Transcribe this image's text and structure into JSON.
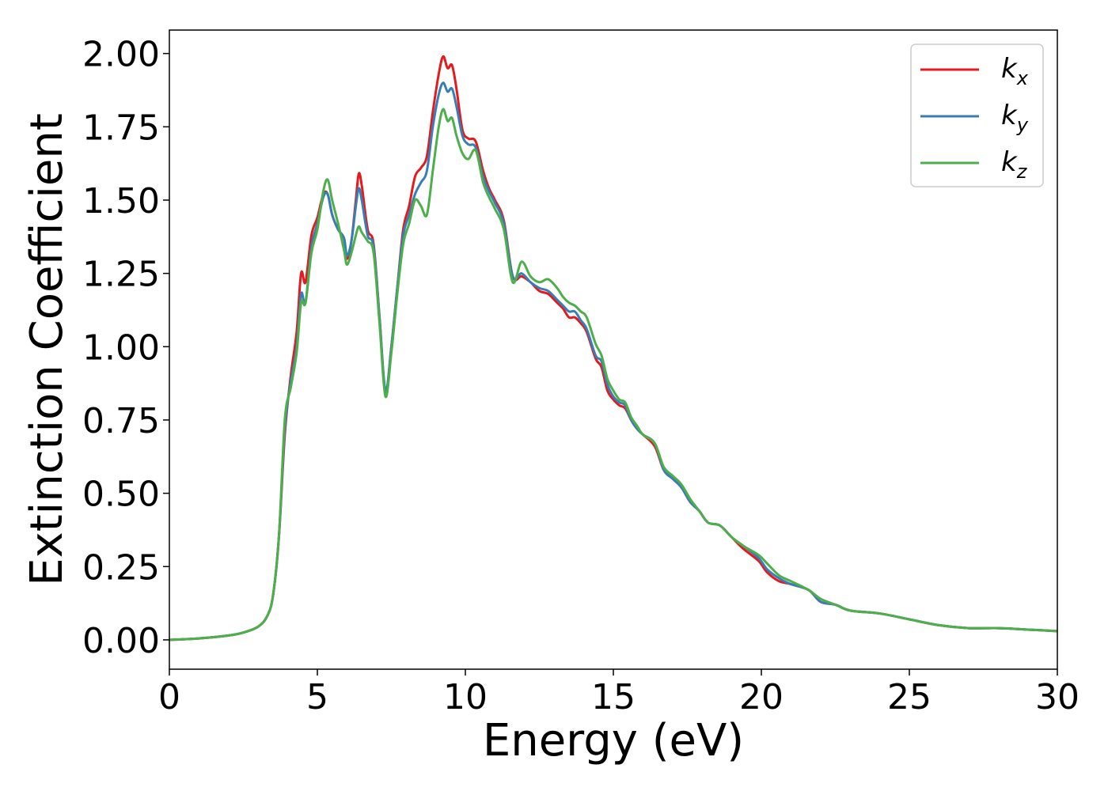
{
  "chart_data": {
    "type": "line",
    "xlabel": "Energy (eV)",
    "ylabel": "Extinction Coefficient",
    "xlim": [
      0,
      30
    ],
    "ylim": [
      -0.1,
      2.08
    ],
    "xticks": [
      "0",
      "5",
      "10",
      "15",
      "20",
      "25",
      "30"
    ],
    "yticks": [
      "0.00",
      "0.25",
      "0.50",
      "0.75",
      "1.00",
      "1.25",
      "1.50",
      "1.75",
      "2.00"
    ],
    "grid": false,
    "legend_position": "top-right",
    "series": [
      {
        "name": "k",
        "subscript": "x",
        "color": "#e41a1c",
        "points": [
          [
            0,
            0
          ],
          [
            1,
            0.005
          ],
          [
            2,
            0.015
          ],
          [
            2.5,
            0.025
          ],
          [
            3,
            0.045
          ],
          [
            3.3,
            0.08
          ],
          [
            3.5,
            0.15
          ],
          [
            3.7,
            0.35
          ],
          [
            3.9,
            0.7
          ],
          [
            4.1,
            0.9
          ],
          [
            4.3,
            1.05
          ],
          [
            4.45,
            1.25
          ],
          [
            4.6,
            1.22
          ],
          [
            4.8,
            1.38
          ],
          [
            5.0,
            1.44
          ],
          [
            5.2,
            1.52
          ],
          [
            5.35,
            1.52
          ],
          [
            5.5,
            1.45
          ],
          [
            5.7,
            1.4
          ],
          [
            5.9,
            1.37
          ],
          [
            6.0,
            1.3
          ],
          [
            6.15,
            1.36
          ],
          [
            6.3,
            1.5
          ],
          [
            6.4,
            1.59
          ],
          [
            6.5,
            1.55
          ],
          [
            6.7,
            1.4
          ],
          [
            6.9,
            1.35
          ],
          [
            7.1,
            1.1
          ],
          [
            7.3,
            0.84
          ],
          [
            7.5,
            1.0
          ],
          [
            7.7,
            1.2
          ],
          [
            7.9,
            1.4
          ],
          [
            8.1,
            1.48
          ],
          [
            8.3,
            1.58
          ],
          [
            8.5,
            1.61
          ],
          [
            8.7,
            1.65
          ],
          [
            8.9,
            1.8
          ],
          [
            9.1,
            1.93
          ],
          [
            9.25,
            1.99
          ],
          [
            9.4,
            1.95
          ],
          [
            9.55,
            1.96
          ],
          [
            9.7,
            1.88
          ],
          [
            9.9,
            1.74
          ],
          [
            10.1,
            1.71
          ],
          [
            10.35,
            1.7
          ],
          [
            10.6,
            1.6
          ],
          [
            10.8,
            1.54
          ],
          [
            11.0,
            1.5
          ],
          [
            11.3,
            1.43
          ],
          [
            11.6,
            1.24
          ],
          [
            11.9,
            1.24
          ],
          [
            12.2,
            1.22
          ],
          [
            12.5,
            1.19
          ],
          [
            12.8,
            1.18
          ],
          [
            13.1,
            1.15
          ],
          [
            13.3,
            1.13
          ],
          [
            13.5,
            1.1
          ],
          [
            13.7,
            1.1
          ],
          [
            13.9,
            1.08
          ],
          [
            14.1,
            1.05
          ],
          [
            14.4,
            0.96
          ],
          [
            14.6,
            0.93
          ],
          [
            14.8,
            0.85
          ],
          [
            15.0,
            0.82
          ],
          [
            15.2,
            0.8
          ],
          [
            15.4,
            0.79
          ],
          [
            15.6,
            0.75
          ],
          [
            15.8,
            0.72
          ],
          [
            16.0,
            0.7
          ],
          [
            16.4,
            0.66
          ],
          [
            16.7,
            0.58
          ],
          [
            17.0,
            0.55
          ],
          [
            17.3,
            0.52
          ],
          [
            17.6,
            0.47
          ],
          [
            17.9,
            0.44
          ],
          [
            18.2,
            0.4
          ],
          [
            18.6,
            0.39
          ],
          [
            19.0,
            0.35
          ],
          [
            19.4,
            0.31
          ],
          [
            19.9,
            0.27
          ],
          [
            20.2,
            0.23
          ],
          [
            20.6,
            0.2
          ],
          [
            21.0,
            0.19
          ],
          [
            21.6,
            0.17
          ],
          [
            22.0,
            0.13
          ],
          [
            22.5,
            0.12
          ],
          [
            23.0,
            0.1
          ],
          [
            24.0,
            0.09
          ],
          [
            25.0,
            0.07
          ],
          [
            26.0,
            0.05
          ],
          [
            27.0,
            0.04
          ],
          [
            28.0,
            0.04
          ],
          [
            29.0,
            0.035
          ],
          [
            30.0,
            0.03
          ]
        ]
      },
      {
        "name": "k",
        "subscript": "y",
        "color": "#377eb8",
        "points": [
          [
            0,
            0
          ],
          [
            1,
            0.005
          ],
          [
            2,
            0.015
          ],
          [
            2.5,
            0.025
          ],
          [
            3,
            0.045
          ],
          [
            3.3,
            0.08
          ],
          [
            3.5,
            0.15
          ],
          [
            3.7,
            0.35
          ],
          [
            3.9,
            0.72
          ],
          [
            4.1,
            0.88
          ],
          [
            4.3,
            1.0
          ],
          [
            4.45,
            1.18
          ],
          [
            4.6,
            1.15
          ],
          [
            4.8,
            1.34
          ],
          [
            5.0,
            1.42
          ],
          [
            5.2,
            1.51
          ],
          [
            5.35,
            1.52
          ],
          [
            5.5,
            1.45
          ],
          [
            5.7,
            1.4
          ],
          [
            5.9,
            1.37
          ],
          [
            6.0,
            1.31
          ],
          [
            6.15,
            1.36
          ],
          [
            6.3,
            1.48
          ],
          [
            6.4,
            1.54
          ],
          [
            6.5,
            1.5
          ],
          [
            6.7,
            1.38
          ],
          [
            6.9,
            1.34
          ],
          [
            7.1,
            1.1
          ],
          [
            7.3,
            0.85
          ],
          [
            7.5,
            1.0
          ],
          [
            7.7,
            1.2
          ],
          [
            7.9,
            1.38
          ],
          [
            8.1,
            1.45
          ],
          [
            8.3,
            1.52
          ],
          [
            8.5,
            1.56
          ],
          [
            8.7,
            1.6
          ],
          [
            8.9,
            1.75
          ],
          [
            9.1,
            1.86
          ],
          [
            9.25,
            1.9
          ],
          [
            9.4,
            1.87
          ],
          [
            9.55,
            1.88
          ],
          [
            9.7,
            1.82
          ],
          [
            9.9,
            1.72
          ],
          [
            10.1,
            1.69
          ],
          [
            10.35,
            1.68
          ],
          [
            10.6,
            1.58
          ],
          [
            10.8,
            1.53
          ],
          [
            11.0,
            1.49
          ],
          [
            11.3,
            1.42
          ],
          [
            11.6,
            1.24
          ],
          [
            11.9,
            1.25
          ],
          [
            12.2,
            1.22
          ],
          [
            12.5,
            1.2
          ],
          [
            12.8,
            1.19
          ],
          [
            13.1,
            1.16
          ],
          [
            13.3,
            1.14
          ],
          [
            13.5,
            1.12
          ],
          [
            13.7,
            1.12
          ],
          [
            13.9,
            1.09
          ],
          [
            14.1,
            1.06
          ],
          [
            14.4,
            0.97
          ],
          [
            14.6,
            0.95
          ],
          [
            14.8,
            0.87
          ],
          [
            15.0,
            0.83
          ],
          [
            15.2,
            0.81
          ],
          [
            15.4,
            0.8
          ],
          [
            15.6,
            0.75
          ],
          [
            15.8,
            0.72
          ],
          [
            16.0,
            0.7
          ],
          [
            16.4,
            0.67
          ],
          [
            16.7,
            0.58
          ],
          [
            17.0,
            0.55
          ],
          [
            17.3,
            0.52
          ],
          [
            17.6,
            0.47
          ],
          [
            17.9,
            0.44
          ],
          [
            18.2,
            0.4
          ],
          [
            18.6,
            0.39
          ],
          [
            19.0,
            0.35
          ],
          [
            19.4,
            0.32
          ],
          [
            19.9,
            0.28
          ],
          [
            20.2,
            0.24
          ],
          [
            20.6,
            0.21
          ],
          [
            21.0,
            0.19
          ],
          [
            21.6,
            0.17
          ],
          [
            22.0,
            0.13
          ],
          [
            22.5,
            0.12
          ],
          [
            23.0,
            0.1
          ],
          [
            24.0,
            0.09
          ],
          [
            25.0,
            0.07
          ],
          [
            26.0,
            0.05
          ],
          [
            27.0,
            0.04
          ],
          [
            28.0,
            0.04
          ],
          [
            29.0,
            0.035
          ],
          [
            30.0,
            0.03
          ]
        ]
      },
      {
        "name": "k",
        "subscript": "z",
        "color": "#4daf4a",
        "points": [
          [
            0,
            0
          ],
          [
            1,
            0.005
          ],
          [
            2,
            0.015
          ],
          [
            2.5,
            0.025
          ],
          [
            3,
            0.045
          ],
          [
            3.3,
            0.08
          ],
          [
            3.5,
            0.15
          ],
          [
            3.7,
            0.35
          ],
          [
            3.9,
            0.75
          ],
          [
            4.1,
            0.86
          ],
          [
            4.3,
            0.98
          ],
          [
            4.45,
            1.15
          ],
          [
            4.6,
            1.15
          ],
          [
            4.8,
            1.32
          ],
          [
            5.0,
            1.4
          ],
          [
            5.2,
            1.53
          ],
          [
            5.35,
            1.57
          ],
          [
            5.5,
            1.5
          ],
          [
            5.7,
            1.42
          ],
          [
            5.9,
            1.33
          ],
          [
            6.0,
            1.28
          ],
          [
            6.15,
            1.32
          ],
          [
            6.3,
            1.38
          ],
          [
            6.4,
            1.41
          ],
          [
            6.5,
            1.39
          ],
          [
            6.7,
            1.36
          ],
          [
            6.9,
            1.32
          ],
          [
            7.1,
            1.08
          ],
          [
            7.3,
            0.83
          ],
          [
            7.5,
            0.98
          ],
          [
            7.7,
            1.18
          ],
          [
            7.9,
            1.35
          ],
          [
            8.1,
            1.42
          ],
          [
            8.3,
            1.5
          ],
          [
            8.5,
            1.48
          ],
          [
            8.7,
            1.45
          ],
          [
            8.9,
            1.6
          ],
          [
            9.1,
            1.75
          ],
          [
            9.25,
            1.81
          ],
          [
            9.4,
            1.77
          ],
          [
            9.55,
            1.78
          ],
          [
            9.7,
            1.72
          ],
          [
            9.9,
            1.66
          ],
          [
            10.1,
            1.64
          ],
          [
            10.35,
            1.67
          ],
          [
            10.6,
            1.56
          ],
          [
            10.8,
            1.51
          ],
          [
            11.0,
            1.47
          ],
          [
            11.3,
            1.4
          ],
          [
            11.6,
            1.22
          ],
          [
            11.9,
            1.29
          ],
          [
            12.2,
            1.24
          ],
          [
            12.5,
            1.22
          ],
          [
            12.8,
            1.23
          ],
          [
            13.1,
            1.2
          ],
          [
            13.3,
            1.17
          ],
          [
            13.5,
            1.15
          ],
          [
            13.7,
            1.14
          ],
          [
            13.9,
            1.12
          ],
          [
            14.1,
            1.1
          ],
          [
            14.4,
            1.01
          ],
          [
            14.6,
            0.97
          ],
          [
            14.8,
            0.89
          ],
          [
            15.0,
            0.85
          ],
          [
            15.2,
            0.82
          ],
          [
            15.4,
            0.81
          ],
          [
            15.6,
            0.76
          ],
          [
            15.8,
            0.73
          ],
          [
            16.0,
            0.7
          ],
          [
            16.4,
            0.67
          ],
          [
            16.7,
            0.59
          ],
          [
            17.0,
            0.56
          ],
          [
            17.3,
            0.53
          ],
          [
            17.6,
            0.48
          ],
          [
            17.9,
            0.44
          ],
          [
            18.2,
            0.4
          ],
          [
            18.6,
            0.39
          ],
          [
            19.0,
            0.35
          ],
          [
            19.4,
            0.32
          ],
          [
            19.9,
            0.29
          ],
          [
            20.2,
            0.26
          ],
          [
            20.6,
            0.22
          ],
          [
            21.0,
            0.2
          ],
          [
            21.6,
            0.17
          ],
          [
            22.0,
            0.14
          ],
          [
            22.5,
            0.12
          ],
          [
            23.0,
            0.1
          ],
          [
            24.0,
            0.09
          ],
          [
            25.0,
            0.07
          ],
          [
            26.0,
            0.05
          ],
          [
            27.0,
            0.04
          ],
          [
            28.0,
            0.04
          ],
          [
            29.0,
            0.035
          ],
          [
            30.0,
            0.03
          ]
        ]
      }
    ]
  }
}
